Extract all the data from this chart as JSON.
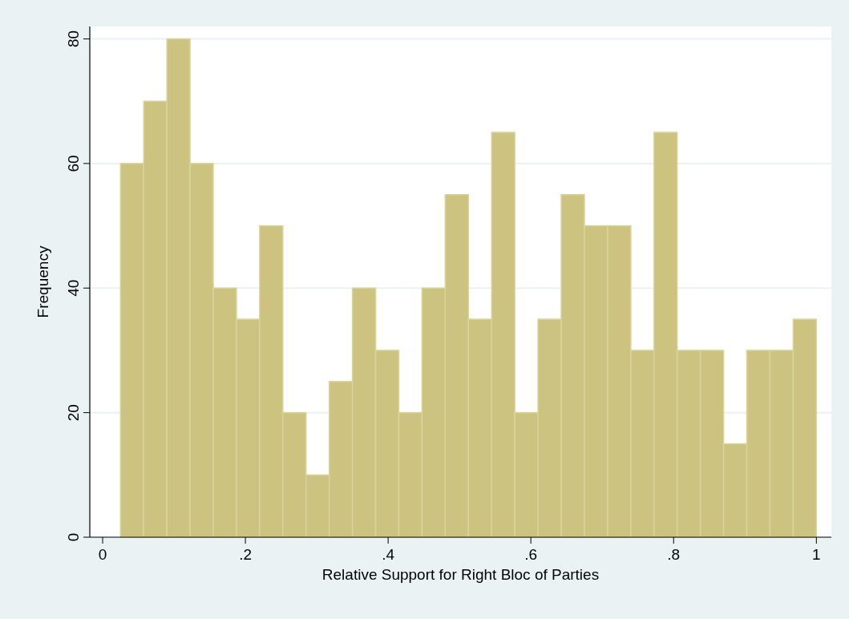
{
  "chart_data": {
    "type": "histogram",
    "xlabel": "Relative Support for Right Bloc of Parties",
    "ylabel": "Frequency",
    "bins": [
      0.025,
      0.0575,
      0.09,
      0.1225,
      0.155,
      0.1875,
      0.22,
      0.2525,
      0.285,
      0.3175,
      0.35,
      0.3825,
      0.415,
      0.4475,
      0.48,
      0.5125,
      0.545,
      0.5775,
      0.61,
      0.6425,
      0.675,
      0.7075,
      0.74,
      0.7725,
      0.805,
      0.8375,
      0.87,
      0.9025,
      0.935,
      0.9675,
      1.0
    ],
    "values": [
      60,
      70,
      80,
      60,
      40,
      35,
      50,
      20,
      10,
      25,
      40,
      30,
      20,
      40,
      55,
      35,
      65,
      20,
      35,
      55,
      50,
      50,
      30,
      65,
      30,
      30,
      15,
      30,
      30,
      35
    ],
    "color": "#cbc37f",
    "xlim": [
      -0.018,
      1.021
    ],
    "ylim": [
      0,
      82
    ],
    "xticks": [
      0,
      {
        "value": 0.2,
        "label": ".2"
      },
      {
        "value": 0.4,
        "label": ".4"
      },
      {
        "value": 0.6,
        "label": ".6"
      },
      {
        "value": 0.8,
        "label": ".8"
      },
      1
    ],
    "yticks": [
      0,
      20,
      40,
      60,
      80
    ],
    "grid": "y"
  }
}
